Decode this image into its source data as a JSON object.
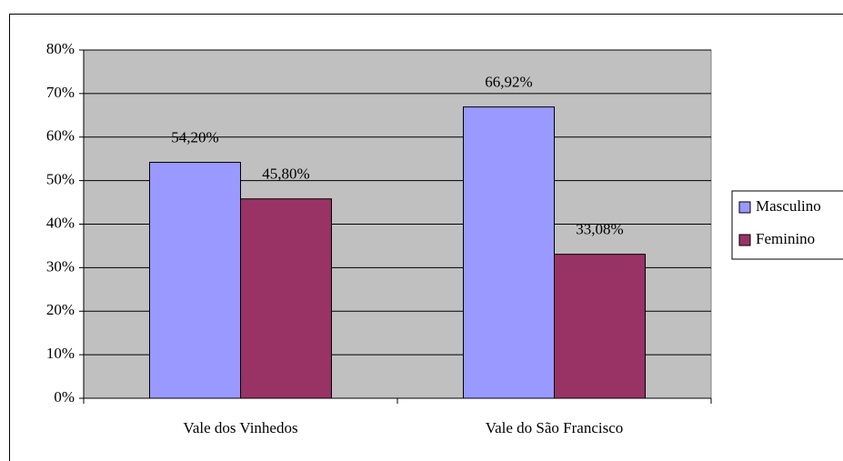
{
  "chart_data": {
    "type": "bar",
    "categories": [
      "Vale dos Vinhedos",
      "Vale do São Francisco"
    ],
    "series": [
      {
        "name": "Masculino",
        "color": "#9999ff",
        "values": [
          54.2,
          66.92
        ],
        "value_labels": [
          "54,20%",
          "66,92%"
        ]
      },
      {
        "name": "Feminino",
        "color": "#993366",
        "values": [
          45.8,
          33.08
        ],
        "value_labels": [
          "45,80%",
          "33,08%"
        ]
      }
    ],
    "ylim": [
      0,
      80
    ],
    "yticks": [
      {
        "value": 0,
        "label": "0%"
      },
      {
        "value": 10,
        "label": "10%"
      },
      {
        "value": 20,
        "label": "20%"
      },
      {
        "value": 30,
        "label": "30%"
      },
      {
        "value": 40,
        "label": "40%"
      },
      {
        "value": 50,
        "label": "50%"
      },
      {
        "value": 60,
        "label": "60%"
      },
      {
        "value": 70,
        "label": "70%"
      },
      {
        "value": 80,
        "label": "80%"
      }
    ],
    "grid": true,
    "legend": "right",
    "plot_background": "#c0c0c0"
  }
}
